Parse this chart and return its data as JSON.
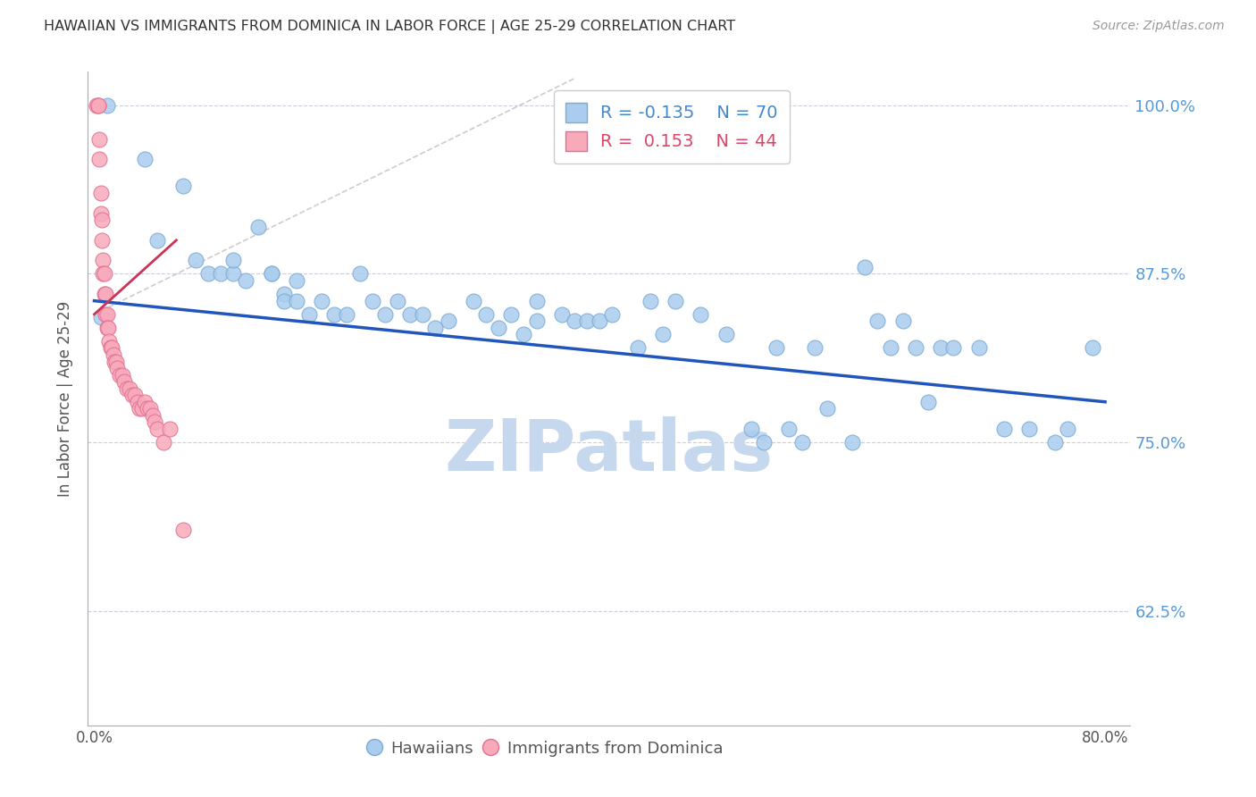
{
  "title": "HAWAIIAN VS IMMIGRANTS FROM DOMINICA IN LABOR FORCE | AGE 25-29 CORRELATION CHART",
  "source": "Source: ZipAtlas.com",
  "ylabel": "In Labor Force | Age 25-29",
  "xlim": [
    -0.005,
    0.82
  ],
  "ylim": [
    0.54,
    1.025
  ],
  "yticks": [
    0.625,
    0.75,
    0.875,
    1.0
  ],
  "ytick_labels": [
    "62.5%",
    "75.0%",
    "87.5%",
    "100.0%"
  ],
  "xticks": [
    0.0,
    0.1,
    0.2,
    0.3,
    0.4,
    0.5,
    0.6,
    0.7,
    0.8
  ],
  "xtick_labels": [
    "0.0%",
    "",
    "",
    "",
    "",
    "",
    "",
    "",
    "80.0%"
  ],
  "blue_color": "#aaccee",
  "blue_edge_color": "#7aaad4",
  "pink_color": "#f8aabb",
  "pink_edge_color": "#e07090",
  "blue_line_color": "#2255bb",
  "pink_line_color": "#cc3355",
  "ref_line_color": "#cccccc",
  "grid_color": "#ccccdd",
  "title_color": "#333333",
  "axis_label_color": "#555555",
  "right_tick_color": "#5599dd",
  "legend_blue_r": "-0.135",
  "legend_blue_n": "70",
  "legend_pink_r": "0.153",
  "legend_pink_n": "44",
  "blue_x": [
    0.005,
    0.01,
    0.04,
    0.05,
    0.07,
    0.08,
    0.09,
    0.1,
    0.11,
    0.11,
    0.12,
    0.13,
    0.14,
    0.14,
    0.15,
    0.15,
    0.16,
    0.16,
    0.17,
    0.18,
    0.19,
    0.2,
    0.21,
    0.22,
    0.23,
    0.24,
    0.25,
    0.26,
    0.27,
    0.28,
    0.3,
    0.31,
    0.32,
    0.33,
    0.34,
    0.35,
    0.35,
    0.37,
    0.38,
    0.39,
    0.4,
    0.41,
    0.43,
    0.44,
    0.45,
    0.46,
    0.48,
    0.5,
    0.52,
    0.53,
    0.54,
    0.55,
    0.56,
    0.57,
    0.58,
    0.6,
    0.61,
    0.62,
    0.63,
    0.64,
    0.65,
    0.66,
    0.67,
    0.68,
    0.7,
    0.72,
    0.74,
    0.76,
    0.77,
    0.79
  ],
  "blue_y": [
    0.843,
    1.0,
    0.96,
    0.9,
    0.94,
    0.885,
    0.875,
    0.875,
    0.875,
    0.885,
    0.87,
    0.91,
    0.875,
    0.875,
    0.86,
    0.855,
    0.87,
    0.855,
    0.845,
    0.855,
    0.845,
    0.845,
    0.875,
    0.855,
    0.845,
    0.855,
    0.845,
    0.845,
    0.835,
    0.84,
    0.855,
    0.845,
    0.835,
    0.845,
    0.83,
    0.855,
    0.84,
    0.845,
    0.84,
    0.84,
    0.84,
    0.845,
    0.82,
    0.855,
    0.83,
    0.855,
    0.845,
    0.83,
    0.76,
    0.75,
    0.82,
    0.76,
    0.75,
    0.82,
    0.775,
    0.75,
    0.88,
    0.84,
    0.82,
    0.84,
    0.82,
    0.78,
    0.82,
    0.82,
    0.82,
    0.76,
    0.76,
    0.75,
    0.76,
    0.82
  ],
  "pink_x": [
    0.002,
    0.003,
    0.003,
    0.004,
    0.004,
    0.005,
    0.005,
    0.006,
    0.006,
    0.007,
    0.007,
    0.008,
    0.008,
    0.009,
    0.009,
    0.01,
    0.01,
    0.011,
    0.012,
    0.013,
    0.014,
    0.015,
    0.016,
    0.017,
    0.018,
    0.02,
    0.022,
    0.024,
    0.026,
    0.028,
    0.03,
    0.032,
    0.034,
    0.036,
    0.038,
    0.04,
    0.042,
    0.044,
    0.046,
    0.048,
    0.05,
    0.055,
    0.06,
    0.07
  ],
  "pink_y": [
    1.0,
    1.0,
    1.0,
    0.975,
    0.96,
    0.935,
    0.92,
    0.915,
    0.9,
    0.885,
    0.875,
    0.875,
    0.86,
    0.86,
    0.845,
    0.845,
    0.835,
    0.835,
    0.825,
    0.82,
    0.82,
    0.815,
    0.81,
    0.81,
    0.805,
    0.8,
    0.8,
    0.795,
    0.79,
    0.79,
    0.785,
    0.785,
    0.78,
    0.775,
    0.775,
    0.78,
    0.775,
    0.775,
    0.77,
    0.765,
    0.76,
    0.75,
    0.76,
    0.685
  ],
  "blue_trend_x": [
    0.0,
    0.8
  ],
  "blue_trend_y": [
    0.855,
    0.78
  ],
  "pink_trend_x": [
    0.0,
    0.065
  ],
  "pink_trend_y": [
    0.845,
    0.9
  ],
  "ref_line_x": [
    0.0,
    0.38
  ],
  "ref_line_y": [
    0.845,
    1.02
  ],
  "watermark": "ZIPatlas",
  "watermark_color": "#c5d8ee",
  "figsize": [
    14.06,
    8.92
  ],
  "dpi": 100
}
